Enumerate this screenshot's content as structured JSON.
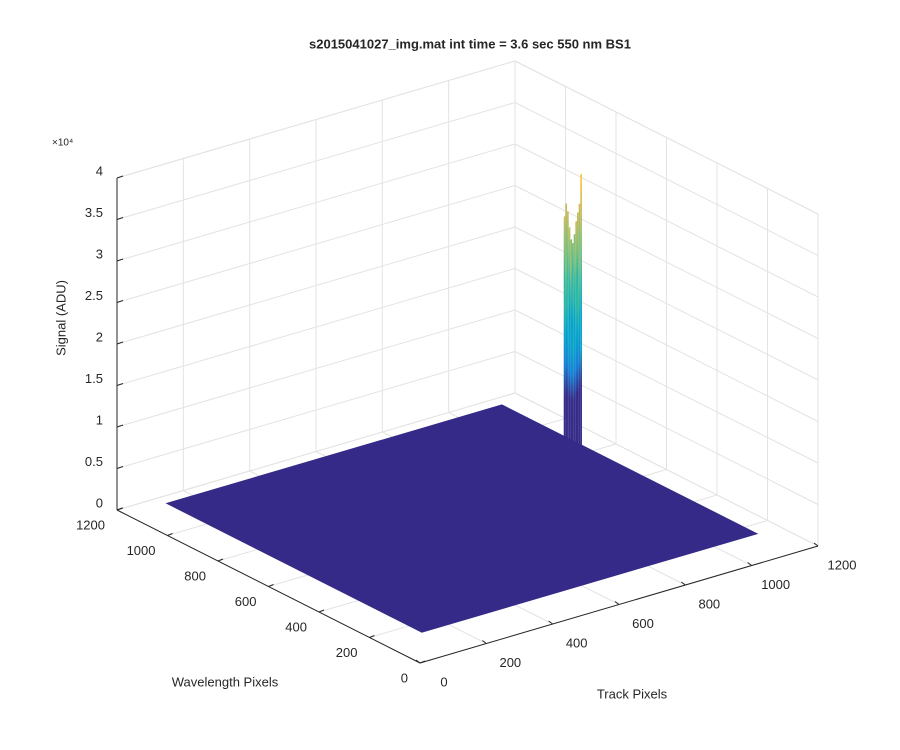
{
  "chart_data": {
    "type": "surface3d",
    "title": "s2015041027_img.mat int time = 3.6 sec  550 nm BS1",
    "x_label": "Track Pixels",
    "y_label": "Wavelength Pixels",
    "z_label": "Signal (ADU)",
    "z_exponent": "×10⁴",
    "xlim": [
      0,
      1200
    ],
    "xticks": [
      0,
      200,
      400,
      600,
      800,
      1000,
      1200
    ],
    "ylim": [
      0,
      1200
    ],
    "yticks": [
      0,
      200,
      400,
      600,
      800,
      1000,
      1200
    ],
    "zlim": [
      0,
      40000
    ],
    "zticks": [
      {
        "value": 0,
        "label": "0"
      },
      {
        "value": 5000,
        "label": "0.5"
      },
      {
        "value": 10000,
        "label": "1"
      },
      {
        "value": 15000,
        "label": "1.5"
      },
      {
        "value": 20000,
        "label": "2"
      },
      {
        "value": 25000,
        "label": "2.5"
      },
      {
        "value": 30000,
        "label": "3"
      },
      {
        "value": 35000,
        "label": "3.5"
      },
      {
        "value": 40000,
        "label": "4"
      }
    ],
    "grid": true,
    "colormap": [
      "#352a87",
      "#0f5cdd",
      "#1481d6",
      "#06a4ca",
      "#2eb7a4",
      "#87bf77",
      "#d1bb59",
      "#fec832",
      "#f9fb0e"
    ],
    "surface": {
      "x": [
        120,
        1130
      ],
      "y": [
        150,
        1160
      ],
      "level": 0
    },
    "spike": {
      "y": 810,
      "x": [
        1050,
        1055,
        1060,
        1065,
        1070,
        1075,
        1080,
        1085,
        1090,
        1095,
        1100
      ],
      "values": [
        29000,
        30500,
        29500,
        27500,
        26000,
        25500,
        26500,
        28000,
        29000,
        30000,
        33500
      ]
    }
  }
}
